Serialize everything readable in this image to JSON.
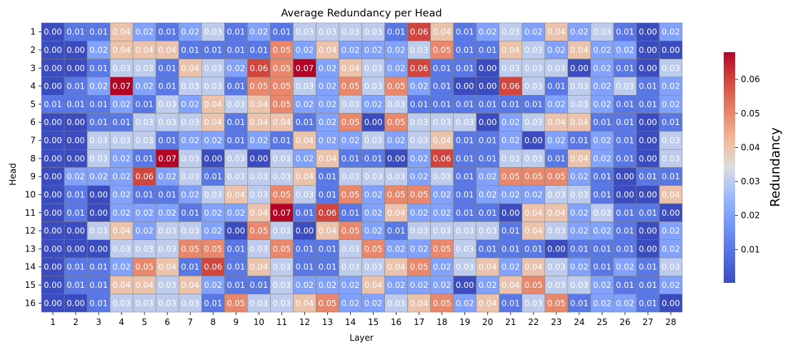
{
  "chart_data": {
    "type": "heatmap",
    "title": "Average Redundancy per Head",
    "xlabel": "Layer",
    "ylabel": "Head",
    "x_categories": [
      "1",
      "2",
      "3",
      "4",
      "5",
      "6",
      "7",
      "8",
      "9",
      "10",
      "11",
      "12",
      "13",
      "14",
      "15",
      "16",
      "17",
      "18",
      "19",
      "20",
      "21",
      "22",
      "23",
      "24",
      "25",
      "26",
      "27",
      "28"
    ],
    "y_categories": [
      "1",
      "2",
      "3",
      "4",
      "5",
      "6",
      "7",
      "8",
      "9",
      "10",
      "11",
      "12",
      "13",
      "14",
      "15",
      "16"
    ],
    "values": [
      [
        "0.00",
        "0.01",
        "0.01",
        "0.04",
        "0.02",
        "0.01",
        "0.02",
        "0.03",
        "0.01",
        "0.02",
        "0.01",
        "0.03",
        "0.03",
        "0.03",
        "0.03",
        "0.01",
        "0.06",
        "0.04",
        "0.01",
        "0.02",
        "0.03",
        "0.02",
        "0.04",
        "0.02",
        "0.03",
        "0.01",
        "0.00",
        "0.02"
      ],
      [
        "0.00",
        "0.00",
        "0.02",
        "0.04",
        "0.04",
        "0.04",
        "0.01",
        "0.01",
        "0.01",
        "0.01",
        "0.05",
        "0.02",
        "0.04",
        "0.02",
        "0.02",
        "0.02",
        "0.03",
        "0.05",
        "0.01",
        "0.01",
        "0.04",
        "0.03",
        "0.02",
        "0.04",
        "0.02",
        "0.02",
        "0.00",
        "0.00"
      ],
      [
        "0.00",
        "0.00",
        "0.01",
        "0.03",
        "0.03",
        "0.01",
        "0.04",
        "0.03",
        "0.02",
        "0.06",
        "0.05",
        "0.07",
        "0.02",
        "0.04",
        "0.03",
        "0.02",
        "0.06",
        "0.01",
        "0.01",
        "0.00",
        "0.03",
        "0.03",
        "0.03",
        "0.00",
        "0.02",
        "0.01",
        "0.00",
        "0.03"
      ],
      [
        "0.00",
        "0.01",
        "0.02",
        "0.07",
        "0.02",
        "0.01",
        "0.03",
        "0.03",
        "0.01",
        "0.05",
        "0.05",
        "0.03",
        "0.02",
        "0.05",
        "0.03",
        "0.05",
        "0.02",
        "0.01",
        "0.00",
        "0.00",
        "0.06",
        "0.03",
        "0.01",
        "0.03",
        "0.02",
        "0.03",
        "0.01",
        "0.02"
      ],
      [
        "0.01",
        "0.01",
        "0.01",
        "0.02",
        "0.01",
        "0.03",
        "0.02",
        "0.04",
        "0.03",
        "0.04",
        "0.05",
        "0.02",
        "0.02",
        "0.03",
        "0.02",
        "0.03",
        "0.01",
        "0.01",
        "0.01",
        "0.01",
        "0.01",
        "0.01",
        "0.02",
        "0.03",
        "0.02",
        "0.01",
        "0.01",
        "0.02"
      ],
      [
        "0.00",
        "0.00",
        "0.01",
        "0.01",
        "0.03",
        "0.03",
        "0.03",
        "0.04",
        "0.01",
        "0.04",
        "0.04",
        "0.01",
        "0.02",
        "0.05",
        "0.00",
        "0.05",
        "0.03",
        "0.03",
        "0.03",
        "0.00",
        "0.02",
        "0.03",
        "0.04",
        "0.04",
        "0.01",
        "0.01",
        "0.00",
        "0.01"
      ],
      [
        "0.00",
        "0.00",
        "0.03",
        "0.03",
        "0.03",
        "0.01",
        "0.02",
        "0.02",
        "0.01",
        "0.02",
        "0.01",
        "0.04",
        "0.02",
        "0.02",
        "0.03",
        "0.02",
        "0.03",
        "0.04",
        "0.01",
        "0.01",
        "0.02",
        "0.00",
        "0.02",
        "0.01",
        "0.02",
        "0.01",
        "0.00",
        "0.03"
      ],
      [
        "0.00",
        "0.00",
        "0.03",
        "0.02",
        "0.01",
        "0.07",
        "0.03",
        "0.00",
        "0.03",
        "0.00",
        "0.03",
        "0.02",
        "0.04",
        "0.01",
        "0.01",
        "0.00",
        "0.02",
        "0.06",
        "0.01",
        "0.01",
        "0.03",
        "0.03",
        "0.01",
        "0.04",
        "0.02",
        "0.01",
        "0.00",
        "0.03"
      ],
      [
        "0.00",
        "0.02",
        "0.02",
        "0.02",
        "0.06",
        "0.02",
        "0.03",
        "0.01",
        "0.03",
        "0.03",
        "0.03",
        "0.04",
        "0.01",
        "0.03",
        "0.03",
        "0.03",
        "0.02",
        "0.03",
        "0.01",
        "0.02",
        "0.05",
        "0.05",
        "0.05",
        "0.02",
        "0.01",
        "0.00",
        "0.01",
        "0.01"
      ],
      [
        "0.00",
        "0.01",
        "0.00",
        "0.02",
        "0.01",
        "0.01",
        "0.02",
        "0.03",
        "0.04",
        "0.03",
        "0.05",
        "0.03",
        "0.01",
        "0.05",
        "0.02",
        "0.05",
        "0.05",
        "0.02",
        "0.01",
        "0.02",
        "0.02",
        "0.02",
        "0.03",
        "0.03",
        "0.01",
        "0.00",
        "0.00",
        "0.04"
      ],
      [
        "0.00",
        "0.01",
        "0.00",
        "0.02",
        "0.02",
        "0.02",
        "0.01",
        "0.02",
        "0.02",
        "0.04",
        "0.07",
        "0.01",
        "0.06",
        "0.01",
        "0.02",
        "0.04",
        "0.02",
        "0.02",
        "0.01",
        "0.01",
        "0.00",
        "0.04",
        "0.04",
        "0.02",
        "0.03",
        "0.01",
        "0.01",
        "0.00"
      ],
      [
        "0.00",
        "0.00",
        "0.03",
        "0.04",
        "0.02",
        "0.03",
        "0.03",
        "0.02",
        "0.00",
        "0.05",
        "0.03",
        "0.00",
        "0.04",
        "0.05",
        "0.02",
        "0.01",
        "0.03",
        "0.03",
        "0.03",
        "0.03",
        "0.01",
        "0.04",
        "0.03",
        "0.02",
        "0.02",
        "0.01",
        "0.00",
        "0.02"
      ],
      [
        "0.00",
        "0.00",
        "0.00",
        "0.03",
        "0.03",
        "0.03",
        "0.05",
        "0.05",
        "0.01",
        "0.03",
        "0.05",
        "0.01",
        "0.01",
        "0.03",
        "0.05",
        "0.02",
        "0.02",
        "0.05",
        "0.03",
        "0.01",
        "0.01",
        "0.01",
        "0.00",
        "0.01",
        "0.01",
        "0.01",
        "0.00",
        "0.02"
      ],
      [
        "0.00",
        "0.01",
        "0.01",
        "0.02",
        "0.05",
        "0.04",
        "0.01",
        "0.06",
        "0.01",
        "0.04",
        "0.03",
        "0.01",
        "0.01",
        "0.03",
        "0.03",
        "0.04",
        "0.05",
        "0.02",
        "0.03",
        "0.04",
        "0.02",
        "0.04",
        "0.03",
        "0.02",
        "0.01",
        "0.02",
        "0.01",
        "0.03"
      ],
      [
        "0.00",
        "0.01",
        "0.01",
        "0.04",
        "0.04",
        "0.03",
        "0.04",
        "0.02",
        "0.01",
        "0.01",
        "0.03",
        "0.02",
        "0.02",
        "0.02",
        "0.04",
        "0.02",
        "0.02",
        "0.02",
        "0.00",
        "0.02",
        "0.04",
        "0.05",
        "0.03",
        "0.03",
        "0.02",
        "0.01",
        "0.01",
        "0.02"
      ],
      [
        "0.00",
        "0.00",
        "0.01",
        "0.03",
        "0.03",
        "0.03",
        "0.03",
        "0.01",
        "0.05",
        "0.03",
        "0.03",
        "0.04",
        "0.05",
        "0.02",
        "0.02",
        "0.03",
        "0.04",
        "0.05",
        "0.02",
        "0.04",
        "0.01",
        "0.03",
        "0.05",
        "0.01",
        "0.02",
        "0.02",
        "0.01",
        "0.00"
      ]
    ],
    "colorbar": {
      "label": "Redundancy",
      "min": 0.0002,
      "max": 0.068,
      "ticks": [
        "0.01",
        "0.02",
        "0.03",
        "0.04",
        "0.05",
        "0.06"
      ],
      "colormap": "coolwarm",
      "low_color": "#3b4cc0",
      "mid_color": "#dddddd",
      "high_color": "#b40426"
    },
    "cell_border_color": "#808080",
    "annotation_text_color": "#ffffff"
  }
}
